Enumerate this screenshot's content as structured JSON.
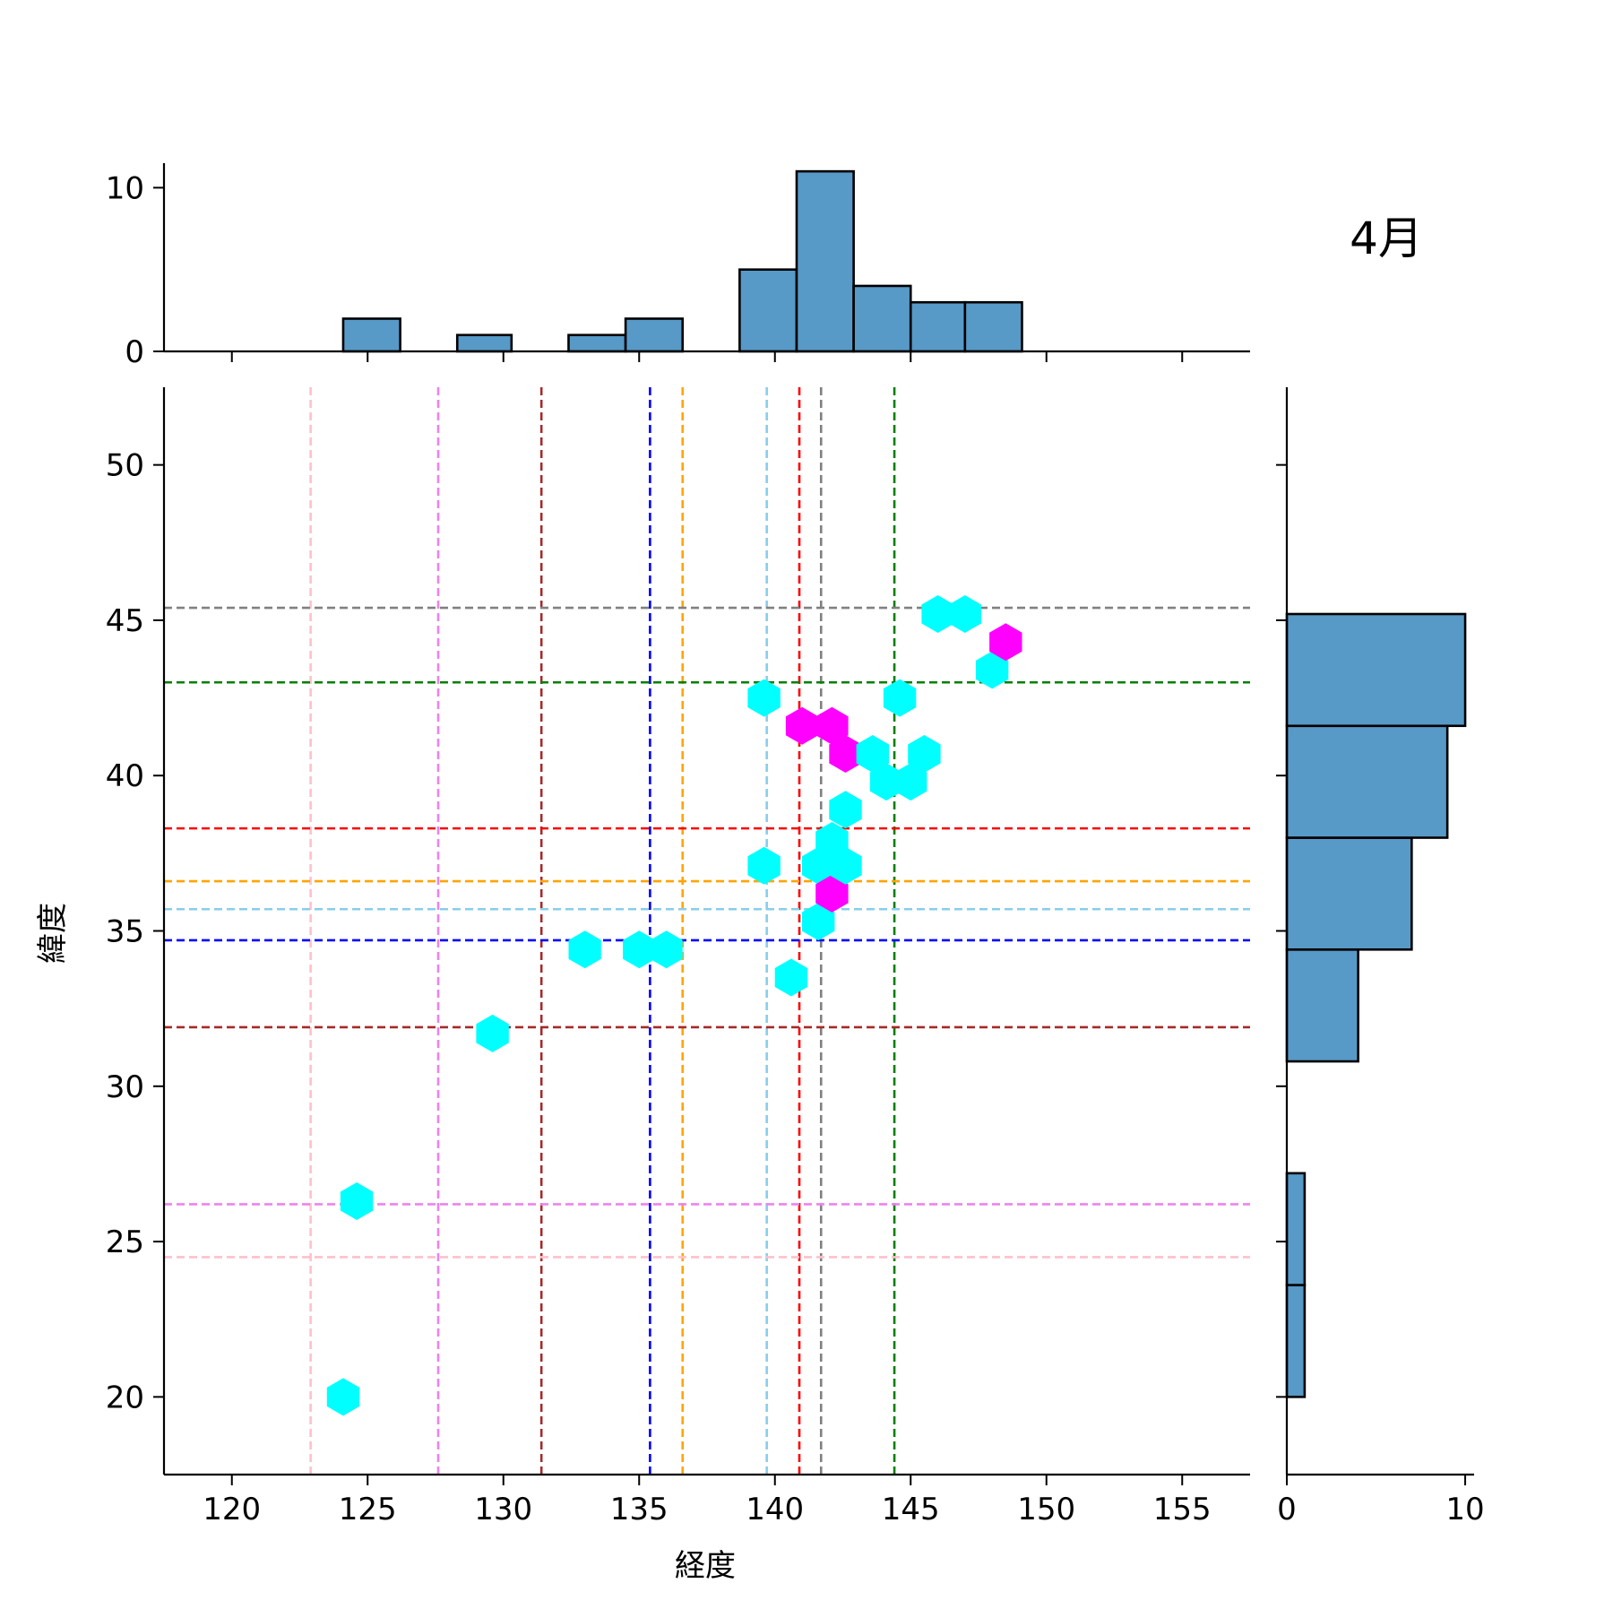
{
  "chart_data": {
    "type": "hexbin",
    "title": "4月",
    "xlabel": "経度",
    "ylabel": "緯度",
    "xlim": [
      117.5,
      157.5
    ],
    "ylim": [
      17.5,
      52.5
    ],
    "x_ticks": [
      120,
      125,
      130,
      135,
      140,
      145,
      150,
      155
    ],
    "y_ticks": [
      20,
      25,
      30,
      35,
      40,
      45,
      50
    ],
    "grid": false,
    "colors": {
      "hex_low": "#00ffff",
      "hex_high": "#ff00ff",
      "histogram_fill": "#5799c7",
      "histogram_edge": "#000000"
    },
    "hex_points": [
      {
        "lon": 124.1,
        "lat": 20.0,
        "count": 1
      },
      {
        "lon": 124.6,
        "lat": 26.3,
        "count": 1
      },
      {
        "lon": 129.6,
        "lat": 31.7,
        "count": 1
      },
      {
        "lon": 133.0,
        "lat": 34.4,
        "count": 1
      },
      {
        "lon": 135.0,
        "lat": 34.4,
        "count": 1
      },
      {
        "lon": 136.0,
        "lat": 34.4,
        "count": 1
      },
      {
        "lon": 139.6,
        "lat": 42.5,
        "count": 1
      },
      {
        "lon": 139.6,
        "lat": 37.1,
        "count": 1
      },
      {
        "lon": 140.6,
        "lat": 33.5,
        "count": 1
      },
      {
        "lon": 141.0,
        "lat": 41.6,
        "count": 2
      },
      {
        "lon": 141.6,
        "lat": 35.3,
        "count": 1
      },
      {
        "lon": 141.6,
        "lat": 37.1,
        "count": 1
      },
      {
        "lon": 142.1,
        "lat": 41.6,
        "count": 2
      },
      {
        "lon": 142.1,
        "lat": 37.9,
        "count": 1
      },
      {
        "lon": 142.1,
        "lat": 36.2,
        "count": 2
      },
      {
        "lon": 142.6,
        "lat": 40.7,
        "count": 2
      },
      {
        "lon": 142.6,
        "lat": 38.9,
        "count": 1
      },
      {
        "lon": 142.6,
        "lat": 37.1,
        "count": 1
      },
      {
        "lon": 143.6,
        "lat": 40.7,
        "count": 1
      },
      {
        "lon": 144.1,
        "lat": 39.8,
        "count": 1
      },
      {
        "lon": 144.6,
        "lat": 42.5,
        "count": 1
      },
      {
        "lon": 145.0,
        "lat": 39.8,
        "count": 1
      },
      {
        "lon": 145.5,
        "lat": 40.7,
        "count": 1
      },
      {
        "lon": 146.0,
        "lat": 45.2,
        "count": 1
      },
      {
        "lon": 147.0,
        "lat": 45.2,
        "count": 1
      },
      {
        "lon": 148.0,
        "lat": 43.4,
        "count": 1
      },
      {
        "lon": 148.5,
        "lat": 44.3,
        "count": 2
      }
    ],
    "reference_lines": [
      {
        "color": "#ffc0cb",
        "lon": 122.9,
        "lat": 24.5
      },
      {
        "color": "#ee82ee",
        "lon": 127.6,
        "lat": 26.2
      },
      {
        "color": "#a52a2a",
        "lon": 131.4,
        "lat": 31.9
      },
      {
        "color": "#0000ff",
        "lon": 135.4,
        "lat": 34.7
      },
      {
        "color": "#ffa500",
        "lon": 136.6,
        "lat": 36.6
      },
      {
        "color": "#87ceeb",
        "lon": 139.7,
        "lat": 35.7
      },
      {
        "color": "#ff0000",
        "lon": 140.9,
        "lat": 38.3
      },
      {
        "color": "#808080",
        "lon": 141.7,
        "lat": 45.4
      },
      {
        "color": "#008000",
        "lon": 144.4,
        "lat": 43.0
      }
    ],
    "marginal_x": {
      "ylim": [
        0,
        11.5
      ],
      "y_ticks": [
        0,
        10
      ],
      "bin_edges": [
        124.1,
        126.2,
        128.3,
        130.3,
        132.4,
        134.5,
        136.6,
        138.7,
        140.8,
        142.9,
        145.0,
        147.0,
        149.1
      ],
      "counts": [
        2,
        0,
        1,
        0,
        1,
        2,
        0,
        5,
        11,
        4,
        3,
        3
      ]
    },
    "marginal_y": {
      "xlim": [
        0,
        10.5
      ],
      "x_ticks": [
        0,
        10
      ],
      "bin_edges": [
        20.0,
        23.6,
        27.2,
        30.8,
        34.4,
        38.0,
        41.6,
        45.2
      ],
      "counts": [
        1,
        1,
        0,
        4,
        7,
        9,
        10
      ]
    }
  }
}
